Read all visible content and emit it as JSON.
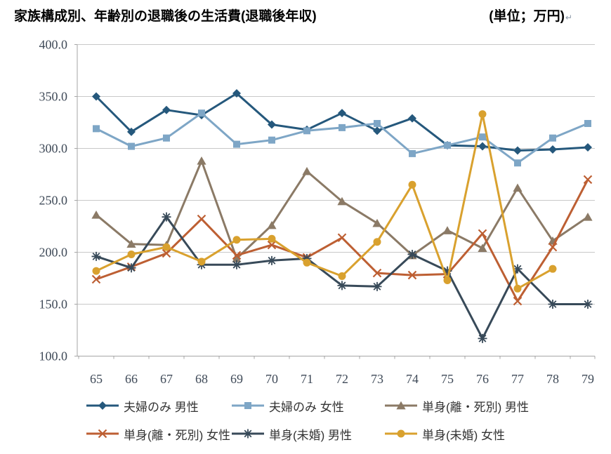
{
  "title": {
    "text": "家族構成別、年齢別の退職後の生活費(退職後年収)",
    "unit": "(単位；万円)",
    "paragraph_mark": "↵"
  },
  "chart_data": {
    "type": "line",
    "title": "家族構成別、年齢別の退職後の生活費(退職後年収)",
    "unit_label": "(単位；万円)",
    "x": [
      65,
      66,
      67,
      68,
      69,
      70,
      71,
      72,
      73,
      74,
      75,
      76,
      77,
      78,
      79
    ],
    "xlabel": "",
    "ylabel": "",
    "ylim": [
      100,
      400
    ],
    "yticks": [
      400,
      350,
      300,
      250,
      200,
      150,
      100
    ],
    "ytick_labels": [
      "400.0",
      "350.0",
      "300.0",
      "250.0",
      "200.0",
      "150.0",
      "100.0"
    ],
    "grid": true,
    "legend_position": "bottom",
    "legend_rows": [
      [
        0,
        1,
        2
      ],
      [
        3,
        4,
        5
      ]
    ],
    "series": [
      {
        "name": "夫婦のみ 男性",
        "color": "#25587C",
        "marker": "diamond",
        "values": [
          350,
          316,
          337,
          332,
          353,
          323,
          318,
          334,
          317,
          329,
          303,
          302,
          298,
          299,
          301
        ]
      },
      {
        "name": "夫婦のみ 女性",
        "color": "#7EA6C6",
        "marker": "square",
        "values": [
          319,
          302,
          310,
          334,
          304,
          308,
          317,
          320,
          324,
          295,
          303,
          311,
          286,
          310,
          324
        ]
      },
      {
        "name": "単身(離・死別) 男性",
        "color": "#8B7A66",
        "marker": "triangle",
        "values": [
          236,
          208,
          207,
          288,
          194,
          226,
          278,
          249,
          228,
          197,
          221,
          204,
          262,
          211,
          234
        ]
      },
      {
        "name": "単身(離・死別) 女性",
        "color": "#BD5F33",
        "marker": "x",
        "values": [
          174,
          186,
          199,
          232,
          197,
          207,
          195,
          214,
          180,
          178,
          179,
          218,
          153,
          205,
          270
        ]
      },
      {
        "name": "単身(未婚) 男性",
        "color": "#384A59",
        "marker": "asterisk",
        "values": [
          196,
          185,
          234,
          188,
          188,
          192,
          194,
          168,
          167,
          198,
          182,
          117,
          184,
          150,
          150
        ]
      },
      {
        "name": "単身(未婚) 女性",
        "color": "#D9A12E",
        "marker": "circle",
        "values": [
          182,
          198,
          205,
          191,
          212,
          213,
          190,
          177,
          210,
          265,
          173,
          333,
          165,
          184,
          null
        ]
      }
    ],
    "colors": {
      "gridline": "#C8C8C8",
      "axis": "#A6A6A6",
      "tick_text": "#3F4A58"
    }
  }
}
